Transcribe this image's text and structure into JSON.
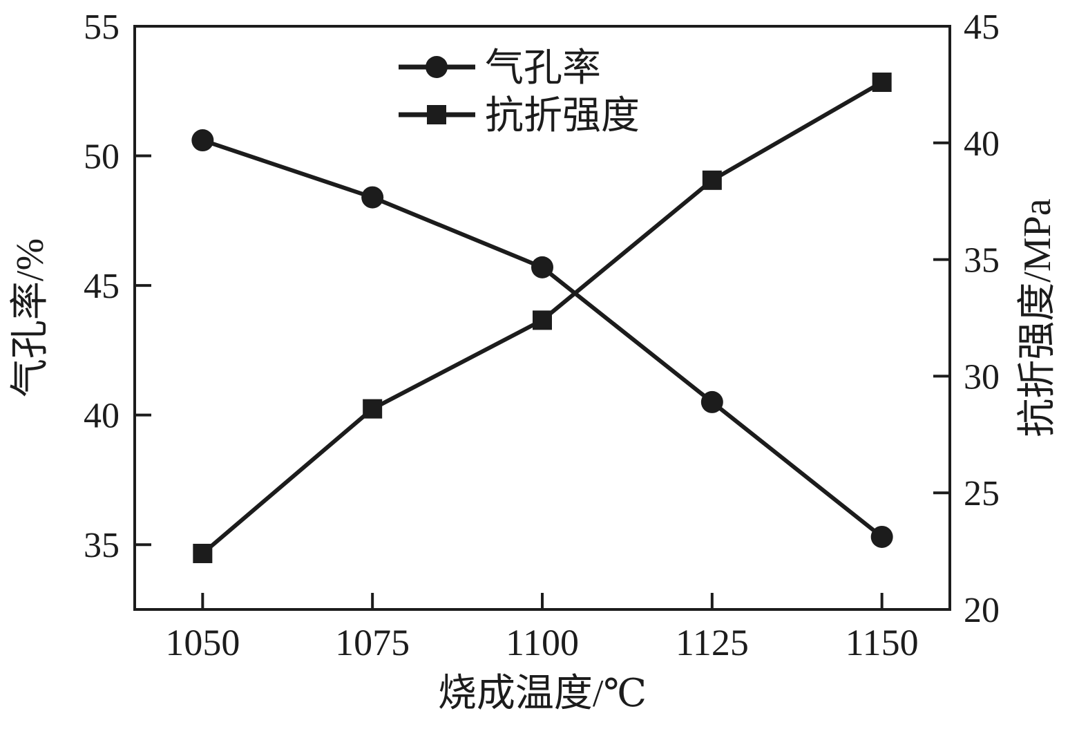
{
  "chart_data": {
    "type": "line",
    "title": "",
    "xlabel": "烧成温度/℃",
    "ylabel_left": "气孔率/%",
    "ylabel_right": "抗折强度/MPa",
    "x": [
      1050,
      1075,
      1100,
      1125,
      1150
    ],
    "series": [
      {
        "name": "气孔率",
        "axis": "left",
        "marker": "circle",
        "values": [
          50.6,
          48.4,
          45.7,
          40.5,
          35.3
        ]
      },
      {
        "name": "抗折强度",
        "axis": "right",
        "marker": "square",
        "values": [
          22.4,
          28.6,
          32.4,
          38.4,
          42.6
        ]
      }
    ],
    "x_axis": {
      "ticks": [
        1050,
        1075,
        1100,
        1125,
        1150
      ],
      "range": [
        1040,
        1160
      ]
    },
    "left_axis": {
      "ticks": [
        35,
        40,
        45,
        50,
        55
      ],
      "range": [
        32.5,
        55
      ]
    },
    "right_axis": {
      "ticks": [
        20,
        25,
        30,
        35,
        40,
        45
      ],
      "range": [
        20,
        45
      ]
    },
    "legend": [
      {
        "label": "气孔率",
        "marker": "circle"
      },
      {
        "label": "抗折强度",
        "marker": "square"
      }
    ],
    "grid": false,
    "legend_position": "top-center-inside",
    "line_color": "#1c1c1c",
    "marker_color": "#1c1c1c"
  }
}
